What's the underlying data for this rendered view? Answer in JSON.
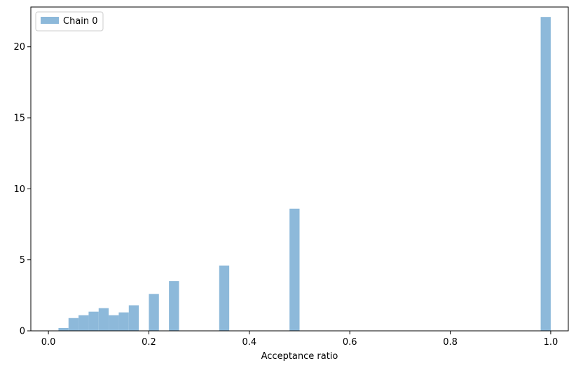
{
  "chart_data": {
    "type": "bar",
    "title": "",
    "xlabel": "Acceptance ratio",
    "ylabel": "",
    "xlim": [
      -0.035,
      1.035
    ],
    "ylim": [
      0,
      22.8
    ],
    "bin_width": 0.02,
    "x_ticks": [
      "0.0",
      "0.2",
      "0.4",
      "0.6",
      "0.8",
      "1.0"
    ],
    "x_tick_values": [
      0.0,
      0.2,
      0.4,
      0.6,
      0.8,
      1.0
    ],
    "y_ticks": [
      "0",
      "5",
      "10",
      "15",
      "20"
    ],
    "y_tick_values": [
      0,
      5,
      10,
      15,
      20
    ],
    "grid": false,
    "legend": {
      "position": "top-left",
      "entries": [
        "Chain 0"
      ]
    },
    "series": [
      {
        "name": "Chain 0",
        "color": "#8db9da",
        "bins": [
          {
            "x": 0.02,
            "y": 0.2
          },
          {
            "x": 0.04,
            "y": 0.9
          },
          {
            "x": 0.06,
            "y": 1.1
          },
          {
            "x": 0.08,
            "y": 1.35
          },
          {
            "x": 0.1,
            "y": 1.6
          },
          {
            "x": 0.12,
            "y": 1.1
          },
          {
            "x": 0.14,
            "y": 1.3
          },
          {
            "x": 0.16,
            "y": 1.8
          },
          {
            "x": 0.2,
            "y": 2.6
          },
          {
            "x": 0.24,
            "y": 3.5
          },
          {
            "x": 0.34,
            "y": 4.6
          },
          {
            "x": 0.48,
            "y": 8.6
          },
          {
            "x": 0.98,
            "y": 22.1
          }
        ]
      }
    ]
  }
}
